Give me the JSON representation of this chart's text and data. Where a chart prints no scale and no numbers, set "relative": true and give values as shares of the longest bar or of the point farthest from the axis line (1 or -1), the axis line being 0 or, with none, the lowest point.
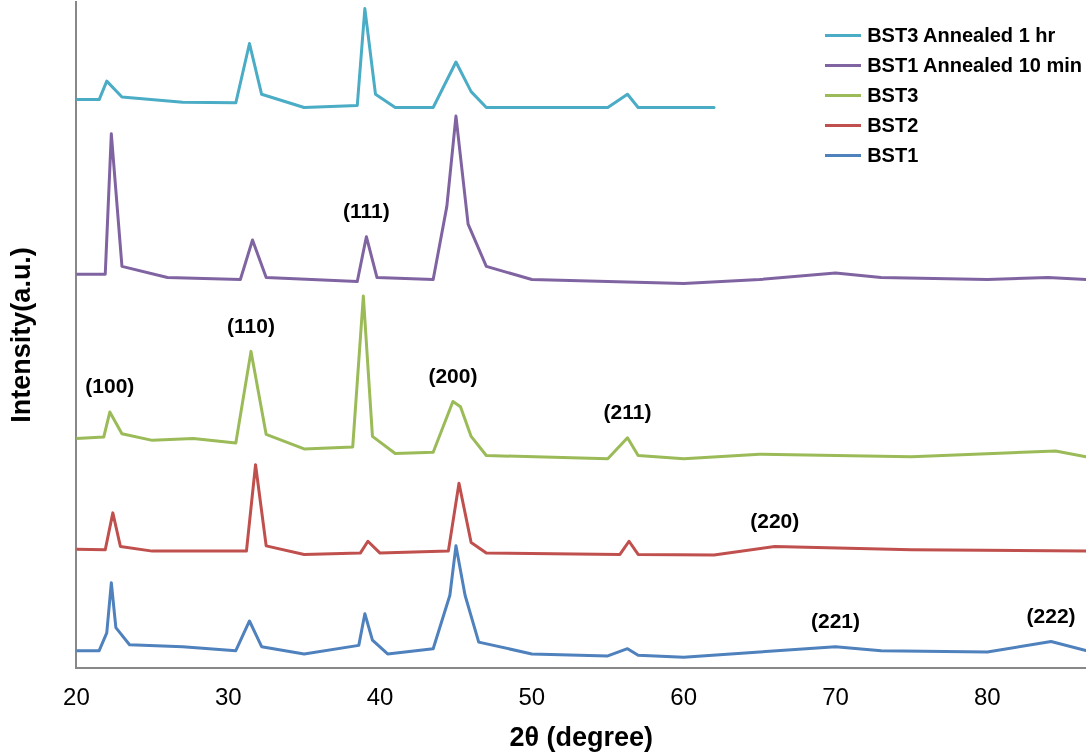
{
  "chart_data": {
    "type": "line",
    "xlabel": "2θ (degree)",
    "ylabel": "Intensity(a.u.)",
    "relative": true,
    "xlim": [
      20,
      86.5
    ],
    "xticks": [
      20,
      30,
      40,
      50,
      60,
      70,
      80
    ],
    "grid": false,
    "legend": "top right",
    "marker": "none",
    "line_style": "solid",
    "annotations": [
      {
        "text": "(100)",
        "x": 22.2,
        "y": 0.388
      },
      {
        "text": "(110)",
        "x": 31.5,
        "y": 0.48
      },
      {
        "text": "(111)",
        "x": 39.1,
        "y": 0.654
      },
      {
        "text": "(200)",
        "x": 44.8,
        "y": 0.404
      },
      {
        "text": "(211)",
        "x": 56.3,
        "y": 0.349
      },
      {
        "text": "(220)",
        "x": 66,
        "y": 0.184
      },
      {
        "text": "(221)",
        "x": 70,
        "y": 0.032
      },
      {
        "text": "(222)",
        "x": 84.2,
        "y": 0.04
      }
    ],
    "series": [
      {
        "name": "BST3 Annealed 1 hr",
        "color": "#4bacc6",
        "x": [
          20,
          21.5,
          22,
          23,
          27,
          30.5,
          31.4,
          32.2,
          35,
          38.5,
          39,
          39.7,
          41,
          43.5,
          45,
          46,
          47,
          55,
          56.3,
          57,
          62
        ],
        "values": [
          0.862,
          0.862,
          0.89,
          0.866,
          0.858,
          0.857,
          0.947,
          0.87,
          0.85,
          0.853,
          1.0,
          0.87,
          0.85,
          0.85,
          0.919,
          0.874,
          0.85,
          0.85,
          0.87,
          0.85,
          0.85
        ]
      },
      {
        "name": "BST1 Annealed 10 min",
        "color": "#8064a2",
        "x": [
          20,
          21.9,
          22.3,
          23,
          26,
          30.8,
          31.6,
          32.5,
          38.5,
          39.1,
          39.8,
          43.5,
          44.4,
          45,
          45.8,
          47,
          50,
          55,
          60,
          65,
          70,
          73,
          80,
          84,
          86.5
        ],
        "values": [
          0.597,
          0.597,
          0.81,
          0.609,
          0.592,
          0.589,
          0.649,
          0.592,
          0.586,
          0.654,
          0.592,
          0.589,
          0.7,
          0.837,
          0.673,
          0.609,
          0.589,
          0.586,
          0.583,
          0.589,
          0.599,
          0.592,
          0.589,
          0.592,
          0.589
        ]
      },
      {
        "name": "BST3",
        "color": "#9bbb59",
        "x": [
          20,
          21.8,
          22.2,
          23,
          25,
          27.7,
          30.5,
          31.5,
          32.5,
          35,
          38.2,
          38.9,
          39.5,
          41,
          43.5,
          44.8,
          45.3,
          46,
          47,
          55,
          56.3,
          57,
          60,
          65,
          70,
          75,
          84.5,
          86.5
        ],
        "values": [
          0.348,
          0.35,
          0.388,
          0.355,
          0.345,
          0.348,
          0.341,
          0.48,
          0.354,
          0.332,
          0.335,
          0.564,
          0.351,
          0.325,
          0.327,
          0.404,
          0.396,
          0.351,
          0.322,
          0.317,
          0.349,
          0.322,
          0.317,
          0.324,
          0.322,
          0.32,
          0.329,
          0.32
        ]
      },
      {
        "name": "BST2",
        "color": "#c0504d",
        "x": [
          20,
          21.9,
          22.4,
          22.9,
          25,
          31.2,
          31.8,
          32.5,
          35,
          38.7,
          39.2,
          40,
          44.5,
          45.2,
          46,
          47,
          55.8,
          56.4,
          57,
          62,
          66,
          75,
          86.5
        ],
        "values": [
          0.18,
          0.179,
          0.235,
          0.184,
          0.177,
          0.177,
          0.308,
          0.185,
          0.172,
          0.174,
          0.192,
          0.174,
          0.177,
          0.28,
          0.19,
          0.174,
          0.172,
          0.192,
          0.172,
          0.171,
          0.184,
          0.179,
          0.177
        ]
      },
      {
        "name": "BST1",
        "color": "#4f81bd",
        "x": [
          20,
          21.5,
          22,
          22.3,
          22.6,
          23.5,
          27,
          30.5,
          31.4,
          32.2,
          35,
          38.6,
          39,
          39.5,
          40.5,
          43.5,
          44.6,
          45,
          45.6,
          46.5,
          50,
          55,
          56.3,
          57,
          60,
          65,
          70,
          73,
          80,
          84.2,
          86.5
        ],
        "values": [
          0.026,
          0.026,
          0.053,
          0.129,
          0.061,
          0.035,
          0.032,
          0.026,
          0.071,
          0.032,
          0.021,
          0.034,
          0.082,
          0.042,
          0.021,
          0.029,
          0.11,
          0.185,
          0.11,
          0.039,
          0.021,
          0.018,
          0.029,
          0.019,
          0.016,
          0.024,
          0.032,
          0.026,
          0.024,
          0.04,
          0.026
        ]
      }
    ]
  }
}
